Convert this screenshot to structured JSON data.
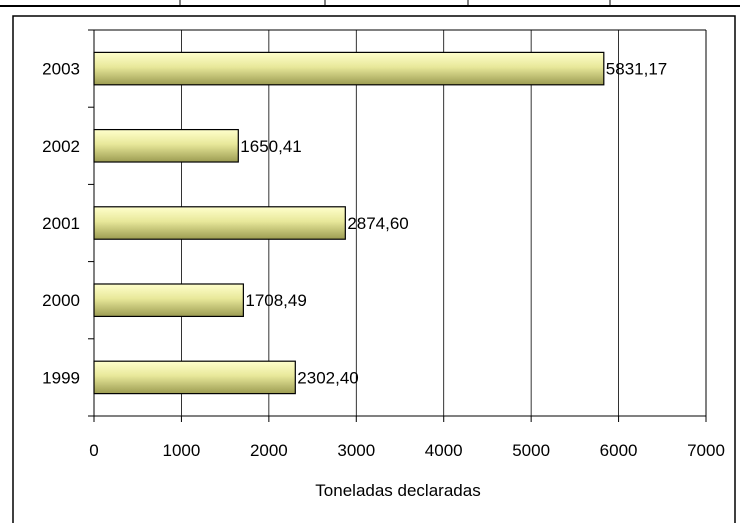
{
  "chart_data": {
    "type": "bar",
    "orientation": "horizontal",
    "categories": [
      "1999",
      "2000",
      "2001",
      "2002",
      "2003"
    ],
    "values": [
      2302.4,
      1708.49,
      2874.6,
      1650.41,
      5831.17
    ],
    "value_labels": [
      "2302,40",
      "1708,49",
      "2874,60",
      "1650,41",
      "5831,17"
    ],
    "title": "",
    "xlabel": "Toneladas declaradas",
    "ylabel": "",
    "xlim": [
      0,
      7000
    ],
    "x_ticks": [
      "0",
      "1000",
      "2000",
      "3000",
      "4000",
      "5000",
      "6000",
      "7000"
    ],
    "grid": true,
    "legend": "none",
    "bar_color_light": "#ffffcc",
    "bar_color_dark": "#a0a050"
  }
}
